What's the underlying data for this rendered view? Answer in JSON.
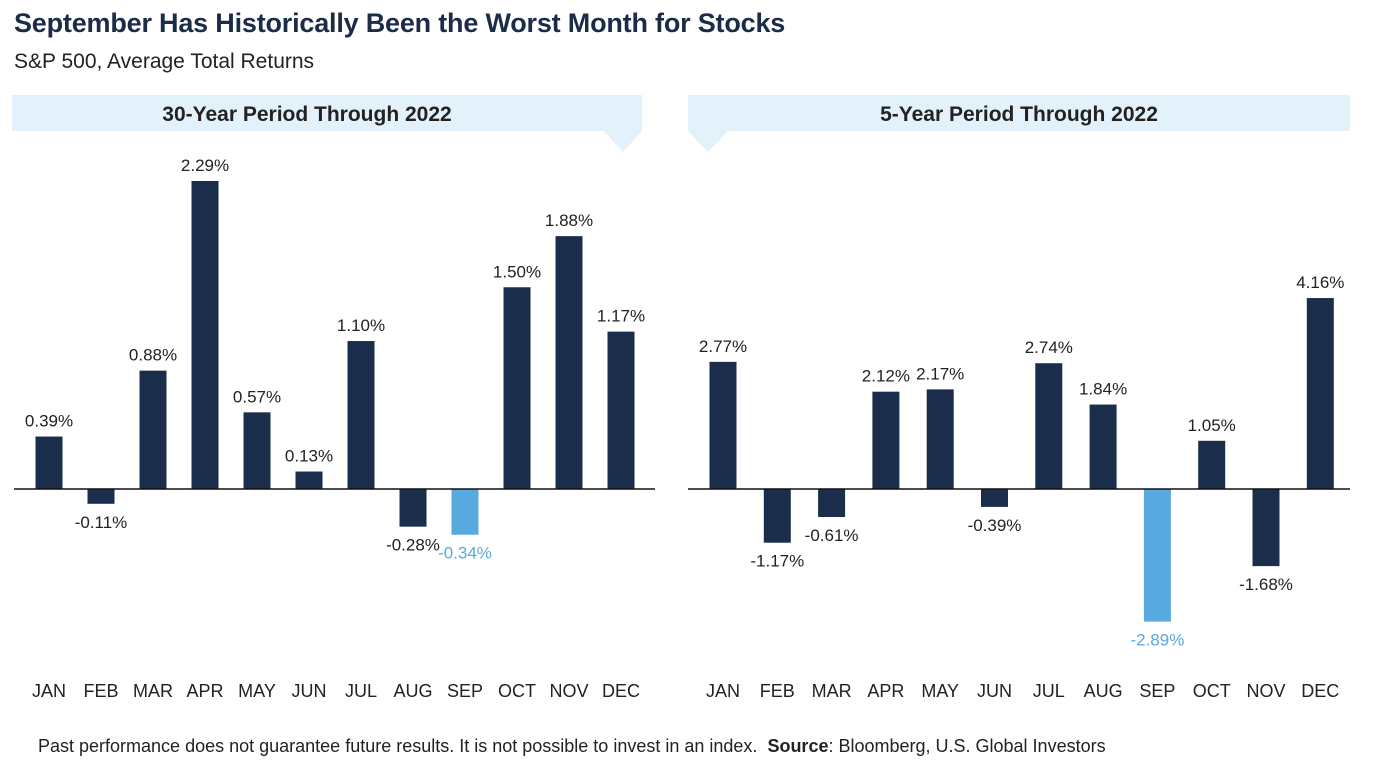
{
  "title": "September Has Historically Been the Worst Month for Stocks",
  "subtitle": "S&P 500, Average Total Returns",
  "footer": {
    "disclaimer": "Past performance does not guarantee future results. It is not possible to invest in an index.",
    "source_label": "Source",
    "source_text": ": Bloomberg, U.S. Global Investors"
  },
  "colors": {
    "bar": "#1a2d4a",
    "highlight": "#58a9df",
    "banner": "#e2f1fa"
  },
  "chart_data": [
    {
      "type": "bar",
      "title": "30-Year Period Through 2022",
      "categories": [
        "JAN",
        "FEB",
        "MAR",
        "APR",
        "MAY",
        "JUN",
        "JUL",
        "AUG",
        "SEP",
        "OCT",
        "NOV",
        "DEC"
      ],
      "values": [
        0.39,
        -0.11,
        0.88,
        2.29,
        0.57,
        0.13,
        1.1,
        -0.28,
        -0.34,
        1.5,
        1.88,
        1.17
      ],
      "labels": [
        "0.39%",
        "-0.11%",
        "0.88%",
        "2.29%",
        "0.57%",
        "0.13%",
        "1.10%",
        "-0.28%",
        "-0.34%",
        "1.50%",
        "1.88%",
        "1.17%"
      ],
      "highlight": "SEP",
      "unit": "%",
      "grid": false
    },
    {
      "type": "bar",
      "title": "5-Year Period Through 2022",
      "categories": [
        "JAN",
        "FEB",
        "MAR",
        "APR",
        "MAY",
        "JUN",
        "JUL",
        "AUG",
        "SEP",
        "OCT",
        "NOV",
        "DEC"
      ],
      "values": [
        2.77,
        -1.17,
        -0.61,
        2.12,
        2.17,
        -0.39,
        2.74,
        1.84,
        -2.89,
        1.05,
        -1.68,
        4.16
      ],
      "labels": [
        "2.77%",
        "-1.17%",
        "-0.61%",
        "2.12%",
        "2.17%",
        "-0.39%",
        "2.74%",
        "1.84%",
        "-2.89%",
        "1.05%",
        "-1.68%",
        "4.16%"
      ],
      "highlight": "SEP",
      "unit": "%",
      "grid": false
    }
  ]
}
